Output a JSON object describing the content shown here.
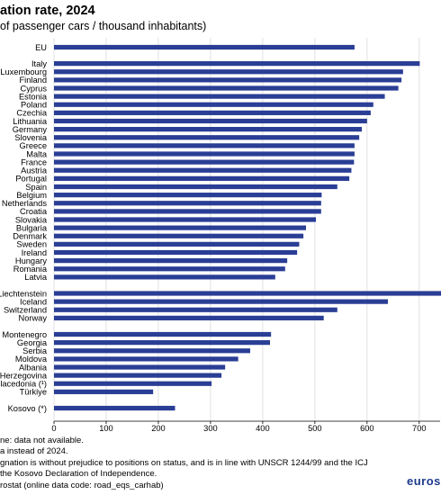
{
  "header": {
    "title": "ation rate, 2024",
    "subtitle": "of passenger cars / thousand inhabitants)"
  },
  "colors": {
    "bar": "#2a3e95",
    "grid": "#d9d9d9",
    "logo": "#1d3b8c"
  },
  "chart_data": {
    "type": "bar",
    "orientation": "horizontal",
    "grid": true,
    "xlim": [
      0,
      740
    ],
    "xticks": [
      0,
      100,
      200,
      300,
      400,
      500,
      600,
      700
    ],
    "categories": [
      "EU",
      "Italy",
      "Luxembourg",
      "Finland",
      "Cyprus",
      "Estonia",
      "Poland",
      "Czechia",
      "Lithuania",
      "Germany",
      "Slovenia",
      "Greece",
      "Malta",
      "France",
      "Austria",
      "Portugal",
      "Spain",
      "Belgium",
      "Netherlands",
      "Croatia",
      "Slovakia",
      "Bulgaria",
      "Denmark",
      "Sweden",
      "Ireland",
      "Hungary",
      "Romania",
      "Latvia",
      "Liechtenstein",
      "Iceland",
      "Switzerland",
      "Norway",
      "Montenegro",
      "Georgia",
      "Serbia",
      "Moldova",
      "Albania",
      "Herzegovina",
      "lacedonia (¹)",
      "Türkiye",
      "Kosovo (*)"
    ],
    "values": [
      576,
      701,
      669,
      666,
      660,
      634,
      612,
      607,
      600,
      590,
      585,
      576,
      576,
      575,
      570,
      566,
      543,
      513,
      512,
      512,
      502,
      483,
      478,
      470,
      466,
      447,
      443,
      424,
      773,
      640,
      543,
      517,
      416,
      414,
      376,
      353,
      328,
      321,
      302,
      190,
      232
    ],
    "groups": [
      1,
      27,
      4,
      8,
      1
    ]
  },
  "notes": [
    "ne: data not available.",
    "a instead of 2024.",
    "gnation is without prejudice to positions on status, and is in line with UNSCR 1244/99 and the ICJ",
    "the Kosovo Declaration of Independence.",
    "rostat (online data code: road_eqs_carhab)"
  ],
  "logo": "euros"
}
